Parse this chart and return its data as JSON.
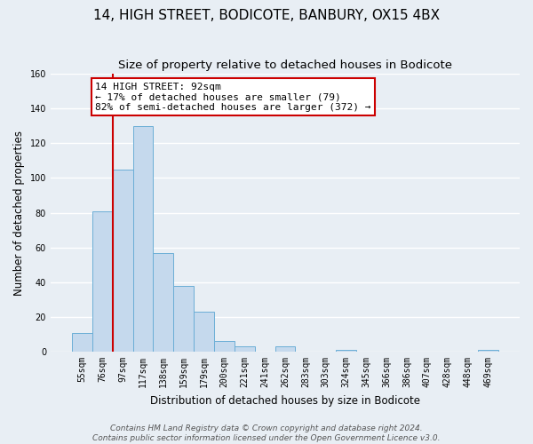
{
  "title": "14, HIGH STREET, BODICOTE, BANBURY, OX15 4BX",
  "subtitle": "Size of property relative to detached houses in Bodicote",
  "xlabel": "Distribution of detached houses by size in Bodicote",
  "ylabel": "Number of detached properties",
  "bar_labels": [
    "55sqm",
    "76sqm",
    "97sqm",
    "117sqm",
    "138sqm",
    "159sqm",
    "179sqm",
    "200sqm",
    "221sqm",
    "241sqm",
    "262sqm",
    "283sqm",
    "303sqm",
    "324sqm",
    "345sqm",
    "366sqm",
    "386sqm",
    "407sqm",
    "428sqm",
    "448sqm",
    "469sqm"
  ],
  "bar_values": [
    11,
    81,
    105,
    130,
    57,
    38,
    23,
    6,
    3,
    0,
    3,
    0,
    0,
    1,
    0,
    0,
    0,
    0,
    0,
    0,
    1
  ],
  "bar_color": "#c5d9ed",
  "bar_edge_color": "#6baed6",
  "vline_x": 2,
  "vline_color": "#cc0000",
  "annotation_text": "14 HIGH STREET: 92sqm\n← 17% of detached houses are smaller (79)\n82% of semi-detached houses are larger (372) →",
  "annotation_box_color": "#ffffff",
  "annotation_box_edgecolor": "#cc0000",
  "ylim": [
    0,
    160
  ],
  "yticks": [
    0,
    20,
    40,
    60,
    80,
    100,
    120,
    140,
    160
  ],
  "footer_line1": "Contains HM Land Registry data © Crown copyright and database right 2024.",
  "footer_line2": "Contains public sector information licensed under the Open Government Licence v3.0.",
  "bg_color": "#e8eef4",
  "grid_color": "#ffffff",
  "title_fontsize": 11,
  "subtitle_fontsize": 9.5,
  "axis_label_fontsize": 8.5,
  "tick_fontsize": 7,
  "footer_fontsize": 6.5,
  "annotation_fontsize": 8
}
